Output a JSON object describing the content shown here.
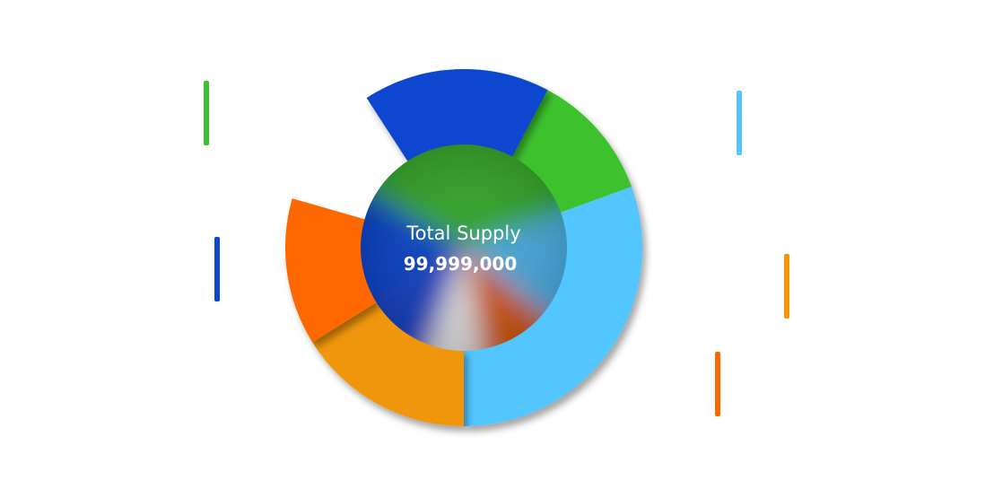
{
  "center": {
    "title": "Total Supply",
    "value": "99,999,000"
  },
  "chart_data": {
    "type": "pie",
    "style": "donut",
    "total": 99999000,
    "slices": [
      {
        "color": "#3ec22f",
        "start_deg": -106,
        "end_deg": -20
      },
      {
        "color": "#53c5ff",
        "start_deg": -20,
        "end_deg": 90
      },
      {
        "color": "#f0960f",
        "start_deg": 90,
        "end_deg": 148
      },
      {
        "color": "#ff6800",
        "start_deg": 148,
        "end_deg": 196
      },
      {
        "color": "#0b47cf",
        "start_deg": 237,
        "end_deg": 298
      }
    ],
    "legend_colors": [
      "#3ec22f",
      "#0b47cf",
      "#53c5ff",
      "#f0960f",
      "#ff6800"
    ]
  }
}
